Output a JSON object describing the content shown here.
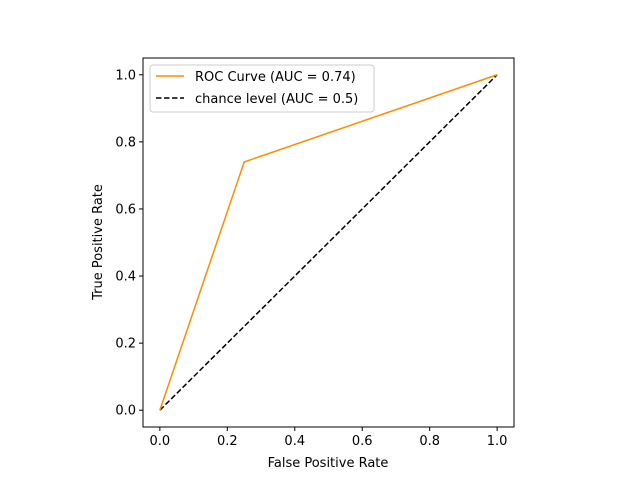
{
  "chart_data": {
    "type": "line",
    "title": "",
    "xlabel": "False Positive Rate",
    "ylabel": "True Positive Rate",
    "xlim": [
      -0.05,
      1.05
    ],
    "ylim": [
      -0.05,
      1.05
    ],
    "xticks": [
      0.0,
      0.2,
      0.4,
      0.6,
      0.8,
      1.0
    ],
    "yticks": [
      0.0,
      0.2,
      0.4,
      0.6,
      0.8,
      1.0
    ],
    "xtick_labels": [
      "0.0",
      "0.2",
      "0.4",
      "0.6",
      "0.8",
      "1.0"
    ],
    "ytick_labels": [
      "0.0",
      "0.2",
      "0.4",
      "0.6",
      "0.8",
      "1.0"
    ],
    "grid": false,
    "legend": "upper-left",
    "series": [
      {
        "name": "ROC Curve (AUC = 0.74)",
        "color": "#ff8c00",
        "style": "solid",
        "x": [
          0.0,
          0.25,
          1.0
        ],
        "y": [
          0.0,
          0.74,
          1.0
        ]
      },
      {
        "name": "chance level (AUC = 0.5)",
        "color": "#000000",
        "style": "dashed",
        "x": [
          0.0,
          1.0
        ],
        "y": [
          0.0,
          1.0
        ]
      }
    ]
  }
}
